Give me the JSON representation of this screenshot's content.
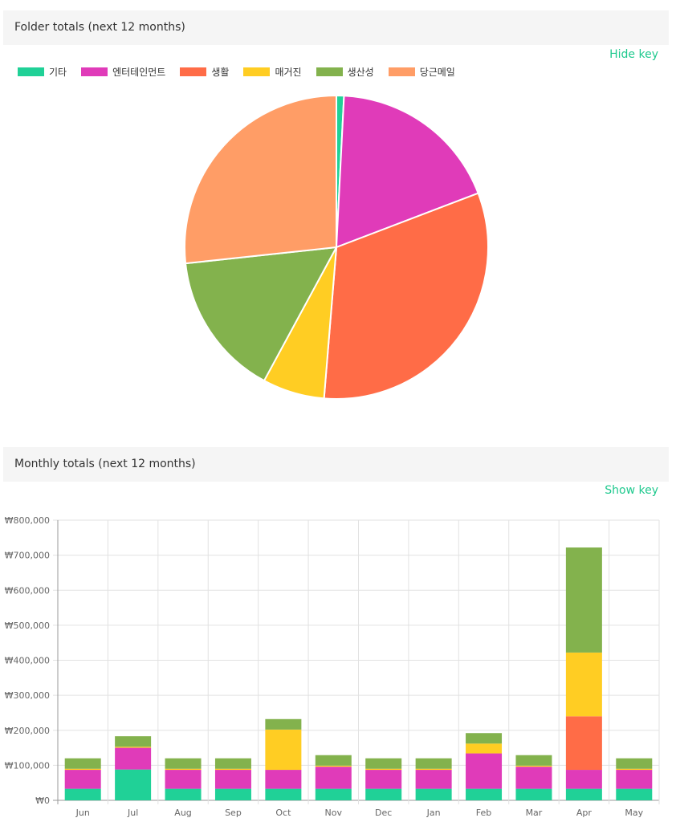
{
  "folder_panel": {
    "title": "Folder totals (next 12 months)",
    "toggle_label": "Hide key"
  },
  "monthly_panel": {
    "title": "Monthly totals (next 12 months)",
    "toggle_label": "Show key"
  },
  "colors": {
    "기타": "#20d197",
    "엔터테인먼트": "#e03bb9",
    "생활": "#ff6c47",
    "매거진": "#ffcd23",
    "생산성": "#83b24d",
    "당근메일": "#ff9d66"
  },
  "chart_data": [
    {
      "type": "pie",
      "title": "Folder totals (next 12 months)",
      "legend_position": "top-left",
      "categories": [
        "기타",
        "엔터테인먼트",
        "생활",
        "매거진",
        "생산성",
        "당근메일"
      ],
      "values": [
        0.8,
        18.4,
        32.1,
        6.6,
        15.4,
        26.7
      ]
    },
    {
      "type": "bar",
      "stacked": true,
      "title": "Monthly totals (next 12 months)",
      "categories": [
        "Jun",
        "Jul",
        "Aug",
        "Sep",
        "Oct",
        "Nov",
        "Dec",
        "Jan",
        "Feb",
        "Mar",
        "Apr",
        "May"
      ],
      "y_ticks": [
        "₩0",
        "₩100,000",
        "₩200,000",
        "₩300,000",
        "₩400,000",
        "₩500,000",
        "₩600,000",
        "₩700,000",
        "₩800,000"
      ],
      "ylim": [
        0,
        800000
      ],
      "grid": true,
      "series": [
        {
          "name": "기타",
          "values": [
            33000,
            88000,
            33000,
            33000,
            33000,
            33000,
            33000,
            33000,
            33000,
            33000,
            33000,
            33000
          ]
        },
        {
          "name": "엔터테인먼트",
          "values": [
            54000,
            62000,
            54000,
            54000,
            54000,
            63000,
            54000,
            54000,
            101000,
            63000,
            54000,
            54000
          ]
        },
        {
          "name": "생활",
          "values": [
            0,
            0,
            0,
            0,
            0,
            0,
            0,
            0,
            0,
            0,
            153000,
            0
          ]
        },
        {
          "name": "매거진",
          "values": [
            3000,
            3000,
            3000,
            3000,
            115000,
            3000,
            3000,
            3000,
            28000,
            3000,
            182000,
            3000
          ]
        },
        {
          "name": "생산성",
          "values": [
            30000,
            30000,
            30000,
            30000,
            30000,
            30000,
            30000,
            30000,
            30000,
            30000,
            300000,
            30000
          ]
        },
        {
          "name": "당근메일",
          "values": [
            0,
            0,
            0,
            0,
            0,
            0,
            0,
            0,
            0,
            0,
            0,
            0
          ]
        }
      ]
    }
  ]
}
